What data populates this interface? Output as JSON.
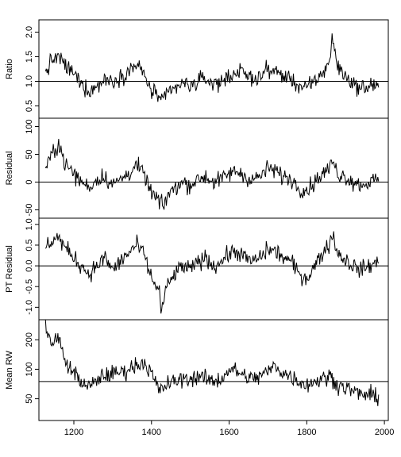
{
  "chart_data": {
    "type": "line",
    "shared_x": {
      "range": [
        1110,
        2010
      ],
      "ticks": [
        1200,
        1400,
        1600,
        1800,
        2000
      ],
      "tick_labels": [
        "1200",
        "1400",
        "1600",
        "1800",
        "2000"
      ],
      "start": 1127,
      "end": 1985
    },
    "panels": [
      {
        "ylabel": "Ratio",
        "ylim": [
          0.25,
          2.25
        ],
        "yticks": [
          0.5,
          1.0,
          1.5,
          2.0
        ],
        "ytick_labels": [
          "0.5",
          "1.0",
          "1.5",
          "2.0"
        ],
        "hline": 1.0,
        "series": [
          {
            "x": [
              1127,
              1140,
              1160,
              1180,
              1200,
              1220,
              1240,
              1260,
              1280,
              1300,
              1320,
              1340,
              1360,
              1380,
              1400,
              1420,
              1430,
              1440,
              1460,
              1480,
              1500,
              1520,
              1540,
              1560,
              1580,
              1600,
              1620,
              1640,
              1660,
              1680,
              1700,
              1720,
              1740,
              1760,
              1780,
              1800,
              1820,
              1840,
              1860,
              1865,
              1880,
              1900,
              1920,
              1940,
              1960,
              1985
            ],
            "y": [
              1.15,
              1.4,
              1.5,
              1.3,
              1.15,
              0.95,
              0.8,
              0.9,
              1.05,
              1.0,
              1.1,
              1.2,
              1.35,
              1.15,
              0.8,
              0.7,
              0.55,
              0.75,
              0.85,
              0.95,
              0.9,
              1.0,
              1.05,
              0.95,
              1.0,
              1.1,
              1.2,
              1.15,
              1.05,
              1.1,
              1.25,
              1.2,
              1.1,
              1.05,
              0.9,
              0.85,
              1.0,
              1.15,
              1.45,
              1.9,
              1.3,
              1.1,
              0.95,
              0.85,
              0.9,
              0.95
            ]
          }
        ]
      },
      {
        "ylabel": "Residual",
        "ylim": [
          -65,
          115
        ],
        "yticks": [
          -50,
          0,
          50,
          100
        ],
        "ytick_labels": [
          "-50",
          "0",
          "50",
          "100"
        ],
        "hline": 0,
        "series": [
          {
            "x": [
              1127,
              1140,
              1160,
              1180,
              1200,
              1220,
              1240,
              1260,
              1280,
              1300,
              1320,
              1340,
              1360,
              1380,
              1400,
              1420,
              1430,
              1440,
              1460,
              1480,
              1500,
              1520,
              1540,
              1560,
              1580,
              1600,
              1620,
              1640,
              1660,
              1680,
              1700,
              1720,
              1740,
              1760,
              1780,
              1800,
              1820,
              1840,
              1860,
              1865,
              1880,
              1900,
              1920,
              1940,
              1960,
              1985
            ],
            "y": [
              20,
              45,
              70,
              30,
              15,
              0,
              -10,
              5,
              10,
              -5,
              5,
              15,
              30,
              15,
              -20,
              -35,
              -45,
              -25,
              -10,
              0,
              -5,
              5,
              10,
              0,
              5,
              15,
              20,
              10,
              5,
              10,
              25,
              20,
              10,
              5,
              -10,
              -15,
              0,
              15,
              25,
              40,
              15,
              10,
              0,
              -5,
              0,
              5
            ]
          }
        ]
      },
      {
        "ylabel": "PT Residual",
        "ylim": [
          -1.3,
          1.15
        ],
        "yticks": [
          -1.0,
          -0.5,
          0.0,
          0.5,
          1.0
        ],
        "ytick_labels": [
          "-1.0",
          "-0.5",
          "0.0",
          "0.5",
          "1.0"
        ],
        "hline": 0.0,
        "series": [
          {
            "x": [
              1127,
              1140,
              1160,
              1180,
              1200,
              1220,
              1240,
              1260,
              1280,
              1300,
              1320,
              1340,
              1360,
              1380,
              1400,
              1420,
              1425,
              1440,
              1460,
              1480,
              1500,
              1520,
              1540,
              1560,
              1580,
              1600,
              1620,
              1640,
              1660,
              1680,
              1700,
              1720,
              1740,
              1760,
              1780,
              1800,
              1820,
              1840,
              1860,
              1865,
              1880,
              1900,
              1920,
              1940,
              1960,
              1985
            ],
            "y": [
              0.4,
              0.6,
              0.7,
              0.4,
              0.2,
              0.0,
              -0.2,
              0.0,
              0.2,
              -0.1,
              0.1,
              0.3,
              0.5,
              0.3,
              -0.3,
              -0.6,
              -1.1,
              -0.5,
              -0.2,
              0.0,
              -0.1,
              0.1,
              0.2,
              0.0,
              0.1,
              0.3,
              0.35,
              0.2,
              0.1,
              0.2,
              0.4,
              0.35,
              0.2,
              0.1,
              -0.2,
              -0.3,
              0.0,
              0.3,
              0.55,
              0.8,
              0.3,
              0.15,
              0.0,
              -0.1,
              0.0,
              0.1
            ]
          }
        ]
      },
      {
        "ylabel": "Mean RW",
        "ylim": [
          30,
          320
        ],
        "scale": "log",
        "yticks": [
          50,
          100,
          200
        ],
        "ytick_labels": [
          "50",
          "100",
          "200"
        ],
        "hline": 75,
        "series": [
          {
            "x": [
              1127,
              1135,
              1145,
              1155,
              1165,
              1175,
              1190,
              1210,
              1230,
              1250,
              1270,
              1300,
              1330,
              1360,
              1380,
              1400,
              1420,
              1440,
              1460,
              1480,
              1500,
              1520,
              1540,
              1560,
              1580,
              1600,
              1620,
              1640,
              1660,
              1680,
              1700,
              1720,
              1740,
              1760,
              1780,
              1800,
              1820,
              1840,
              1860,
              1880,
              1900,
              1920,
              1940,
              1960,
              1985
            ],
            "y": [
              280,
              240,
              160,
              230,
              180,
              130,
              100,
              85,
              65,
              70,
              85,
              90,
              95,
              110,
              120,
              90,
              60,
              70,
              75,
              80,
              80,
              85,
              80,
              75,
              80,
              100,
              95,
              85,
              80,
              85,
              95,
              110,
              90,
              85,
              75,
              70,
              75,
              80,
              85,
              70,
              65,
              60,
              55,
              55,
              50
            ]
          }
        ]
      }
    ]
  }
}
